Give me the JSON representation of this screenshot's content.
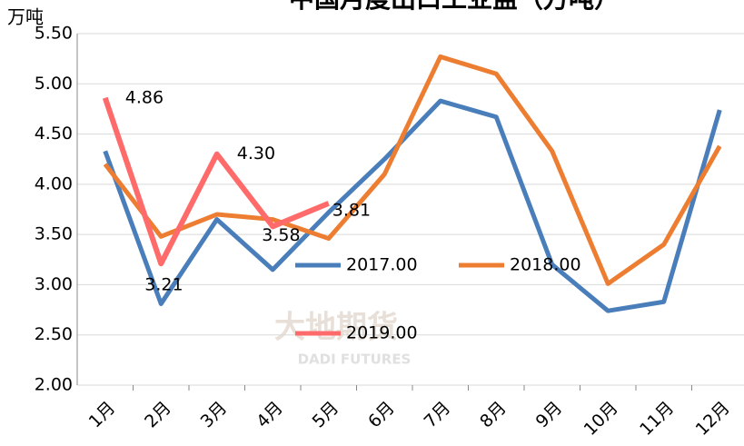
{
  "chart_data": {
    "type": "line",
    "title": "中国月度出口工业盐（万吨）",
    "y_axis_label": "万吨",
    "watermark": [
      "大地期货",
      "DADI FUTURES"
    ],
    "categories": [
      "1月",
      "2月",
      "3月",
      "4月",
      "5月",
      "6月",
      "7月",
      "8月",
      "9月",
      "10月",
      "11月",
      "12月"
    ],
    "series": [
      {
        "name": "2017.00",
        "color": "#4a7ebb",
        "values": [
          4.33,
          2.81,
          3.65,
          3.15,
          3.72,
          4.25,
          4.83,
          4.67,
          3.2,
          2.74,
          2.83,
          4.74
        ]
      },
      {
        "name": "2018.00",
        "color": "#ed7d31",
        "values": [
          4.2,
          3.48,
          3.7,
          3.65,
          3.46,
          4.1,
          5.27,
          5.1,
          4.33,
          3.01,
          3.4,
          4.38
        ]
      },
      {
        "name": "2019.00",
        "color": "#ff6b6b",
        "values": [
          4.86,
          3.21,
          4.3,
          3.58,
          3.81,
          null,
          null,
          null,
          null,
          null,
          null,
          null
        ],
        "value_labels": [
          "4.86",
          "3.21",
          "4.30",
          "3.58",
          "3.81",
          null,
          null,
          null,
          null,
          null,
          null,
          null
        ]
      }
    ],
    "ylim": [
      2,
      5.5
    ],
    "yticks": [
      {
        "value": 2,
        "label": "2.00"
      },
      {
        "value": 2.5,
        "label": "2.50"
      },
      {
        "value": 3,
        "label": "3.00"
      },
      {
        "value": 3.5,
        "label": "3.50"
      },
      {
        "value": 4,
        "label": "4.00"
      },
      {
        "value": 4.5,
        "label": "4.50"
      },
      {
        "value": 5,
        "label": "5.00"
      },
      {
        "value": 5.5,
        "label": "5.50"
      }
    ],
    "grid": true
  }
}
